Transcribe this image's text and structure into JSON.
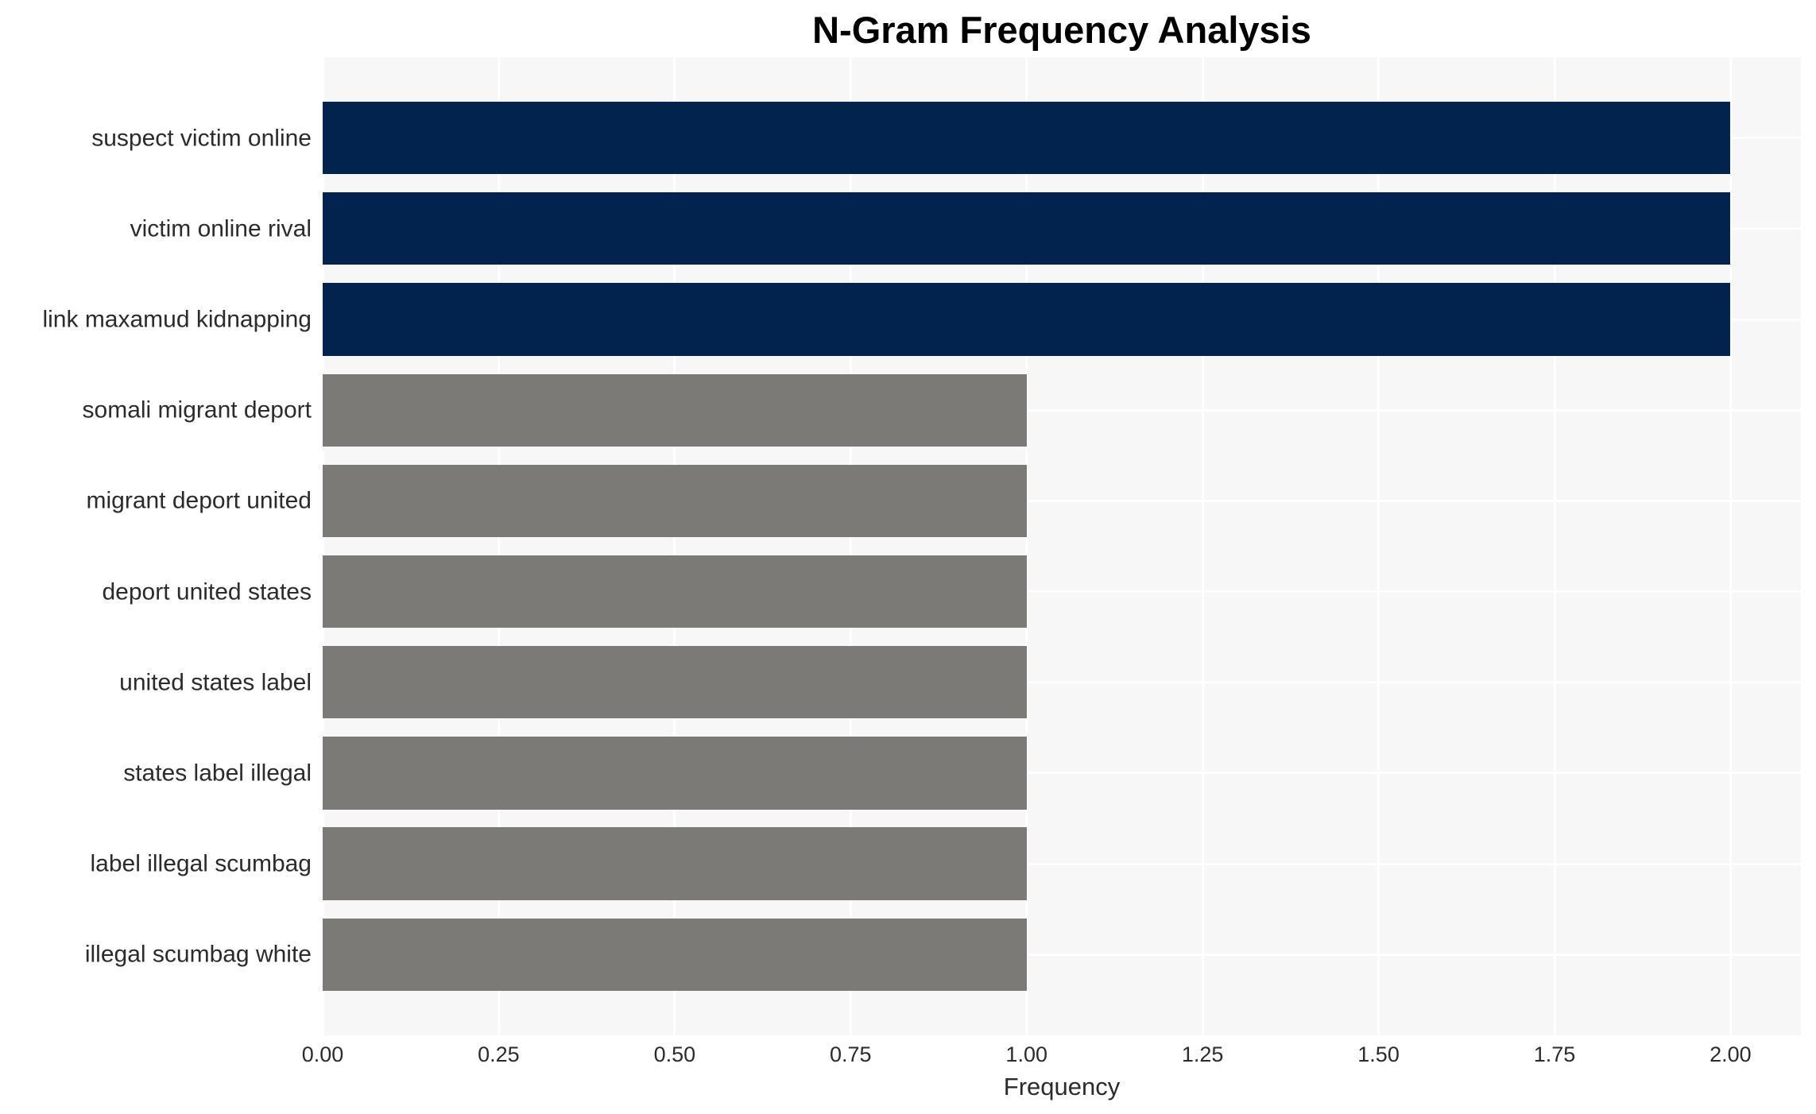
{
  "chart_data": {
    "type": "bar",
    "orientation": "horizontal",
    "title": "N-Gram Frequency Analysis",
    "xlabel": "Frequency",
    "ylabel": "",
    "categories": [
      "suspect victim online",
      "victim online rival",
      "link maxamud kidnapping",
      "somali migrant deport",
      "migrant deport united",
      "deport united states",
      "united states label",
      "states label illegal",
      "label illegal scumbag",
      "illegal scumbag white"
    ],
    "values": [
      2,
      2,
      2,
      1,
      1,
      1,
      1,
      1,
      1,
      1
    ],
    "bar_colors": [
      "#02234E",
      "#02234E",
      "#02234E",
      "#7B7A77",
      "#7B7A77",
      "#7B7A77",
      "#7B7A77",
      "#7B7A77",
      "#7B7A77",
      "#7B7A77"
    ],
    "xlim": [
      0,
      2.1
    ],
    "xticks": [
      {
        "value": 0.0,
        "label": "0.00"
      },
      {
        "value": 0.25,
        "label": "0.25"
      },
      {
        "value": 0.5,
        "label": "0.50"
      },
      {
        "value": 0.75,
        "label": "0.75"
      },
      {
        "value": 1.0,
        "label": "1.00"
      },
      {
        "value": 1.25,
        "label": "1.25"
      },
      {
        "value": 1.5,
        "label": "1.50"
      },
      {
        "value": 1.75,
        "label": "1.75"
      },
      {
        "value": 2.0,
        "label": "2.00"
      }
    ],
    "grid": true,
    "legend_position": "none",
    "colors": {
      "plot_background": "#F7F7F7",
      "figure_background": "#FFFFFF",
      "gridline": "#FFFFFF",
      "text": "#2b2b2b",
      "title_text": "#000000",
      "high_bar": "#02234E",
      "low_bar": "#7B7A77"
    }
  }
}
